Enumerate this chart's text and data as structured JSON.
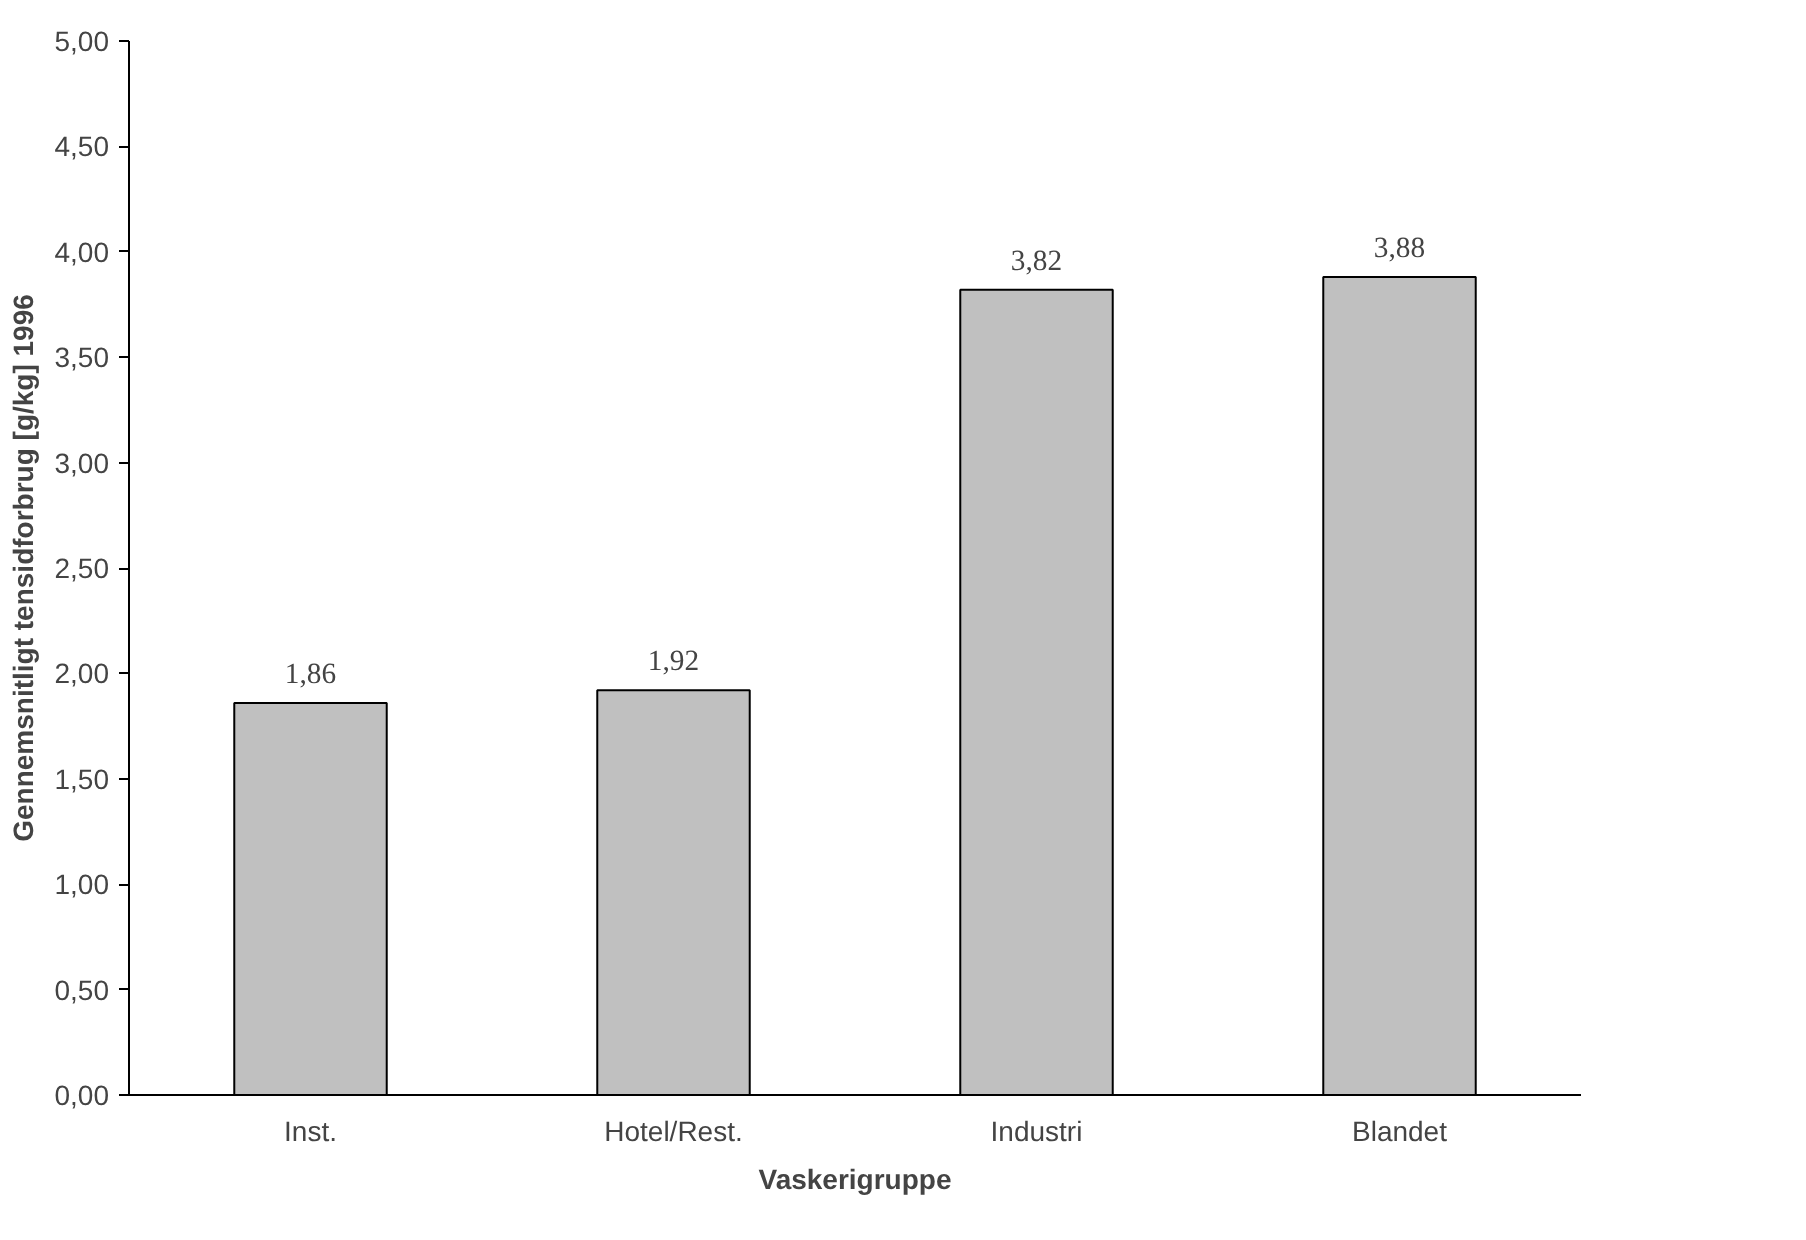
{
  "chart_data": {
    "type": "bar",
    "xlabel": "Vaskerigruppe",
    "ylabel": "Gennemsnitligt tensidforbrug [g/kg] 1996",
    "categories": [
      "Inst.",
      "Hotel/Rest.",
      "Industri",
      "Blandet"
    ],
    "values": [
      1.86,
      1.92,
      3.82,
      3.88
    ],
    "color": "#c0c0c0",
    "value_labels": [
      "1,86",
      "1,92",
      "3,82",
      "3,88"
    ],
    "ylim": [
      0,
      5
    ],
    "yticks": [
      {
        "value": 0,
        "label": "0,00"
      },
      {
        "value": 0.5,
        "label": "0,50"
      },
      {
        "value": 1,
        "label": "1,00"
      },
      {
        "value": 1.5,
        "label": "1,50"
      },
      {
        "value": 2,
        "label": "2,00"
      },
      {
        "value": 2.5,
        "label": "2,50"
      },
      {
        "value": 3,
        "label": "3,00"
      },
      {
        "value": 3.5,
        "label": "3,50"
      },
      {
        "value": 4,
        "label": "4,00"
      },
      {
        "value": 4.5,
        "label": "4,50"
      },
      {
        "value": 5,
        "label": "5,00"
      }
    ],
    "grid": false
  }
}
